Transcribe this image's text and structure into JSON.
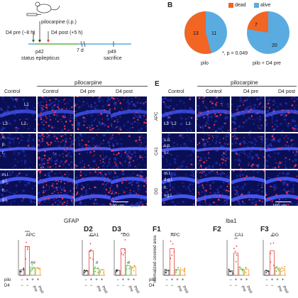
{
  "panelA": {
    "drug": "pilocarpine (i.p.)",
    "d4pre": "D4 pre (−8 h)",
    "d4post": "D4 post (+5 h)",
    "p42": "p42",
    "status": "status epilepticus",
    "days": "7 d",
    "p49": "p49",
    "sacrifice": "sacrifice"
  },
  "panelB": {
    "letter": "B",
    "legend_dead": "dead",
    "legend_alive": "alive",
    "colors": {
      "dead": "#f26522",
      "alive": "#5aace0"
    },
    "pie1_dead": "13",
    "pie1_alive": "11",
    "pie1_label": "pilo",
    "pie2_dead": "7",
    "pie2_alive": "20",
    "pie2_label": "pilo + D4 pre",
    "stat": "*, p = 0.049"
  },
  "panelC": {
    "pilocarpine": "pilocarpine",
    "cols": [
      "Control",
      "Control",
      "D4 pre",
      "D4 post"
    ],
    "labels_top": [
      "L1",
      "L3",
      "L2"
    ],
    "labels_mid": [
      "o.",
      "p.",
      "r."
    ],
    "labels_bot": [
      "m.l.",
      "g.l.",
      "h."
    ],
    "scale": "100 μm",
    "dapi": "DAPI"
  },
  "panelE": {
    "letter": "E",
    "pilocarpine": "pilocarpine",
    "cols": [
      "Control",
      "Control",
      "D4 pre",
      "D4 post"
    ],
    "rows": [
      "APC",
      "CA1",
      "DG"
    ],
    "labels_top": [
      "L3",
      "L2",
      "L1"
    ],
    "labels_mid": [
      "s.o.",
      "s.p.",
      "s.r."
    ],
    "labels_bot": [
      "m.l.",
      "d.g.l.",
      "h.",
      "v.g.l."
    ],
    "scale": "100 μm"
  },
  "lower": {
    "gfap": "GFAP",
    "iba1": "Iba1",
    "f1": "F1",
    "ylabel_f": "normalized covered area",
    "d2": "D2",
    "d3": "D3",
    "f2": "F2",
    "f3": "F3",
    "region_apc": "APC",
    "region_ca1": "CA1",
    "region_dg": "DG",
    "pilo": "pilo",
    "d4": "D4",
    "pre": "Pre",
    "post": "Post",
    "pilo_signs": [
      "−",
      "+",
      "+",
      "+"
    ],
    "d4_signs": [
      "−",
      "−"
    ],
    "sig_stars": "***",
    "sig_stars_f": "**",
    "sig_hash2": "##",
    "sig_hash1": "#",
    "colors": {
      "ctrl": "#333333",
      "pilo": "#e8413c",
      "pre": "#6db43e",
      "post": "#f2a33a"
    }
  },
  "chart_data": [
    {
      "type": "bar",
      "panel": "D1",
      "title": "APC",
      "categories": [
        "Control",
        "Pilo",
        "D4 pre",
        "D4 post"
      ],
      "values": [
        1.2,
        6.5,
        1.8,
        1.6
      ]
    },
    {
      "type": "bar",
      "panel": "D2",
      "title": "CA1",
      "categories": [
        "Control",
        "Pilo",
        "D4 pre",
        "D4 post"
      ],
      "values": [
        1.0,
        5.5,
        1.5,
        1.3
      ]
    },
    {
      "type": "bar",
      "panel": "D3",
      "title": "DG",
      "categories": [
        "Control",
        "Pilo",
        "D4 pre",
        "D4 post"
      ],
      "values": [
        1.1,
        6.0,
        2.2,
        1.9
      ]
    },
    {
      "type": "bar",
      "panel": "F1",
      "title": "APC",
      "categories": [
        "Control",
        "Pilo",
        "D4 pre",
        "D4 post"
      ],
      "values": [
        1.0,
        6.0,
        1.3,
        1.2
      ]
    },
    {
      "type": "bar",
      "panel": "F2",
      "title": "CA1",
      "categories": [
        "Control",
        "Pilo",
        "D4 pre",
        "D4 post"
      ],
      "values": [
        1.0,
        5.0,
        1.4,
        1.3
      ]
    },
    {
      "type": "bar",
      "panel": "F3",
      "title": "DG",
      "categories": [
        "Control",
        "Pilo",
        "D4 pre",
        "D4 post"
      ],
      "values": [
        1.0,
        5.5,
        1.6,
        1.5
      ]
    }
  ]
}
